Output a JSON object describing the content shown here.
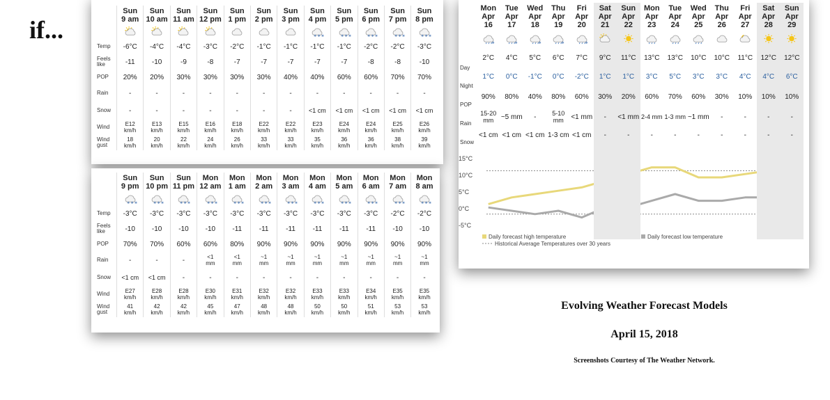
{
  "intro_word": "if...",
  "titles": {
    "main": "Evolving Weather Forecast Models",
    "date": "April 15, 2018",
    "credit": "Screenshots Courtesy of The Weather Network."
  },
  "hourly_labels": {
    "temp": "Temp",
    "feels": "Feels like",
    "pop": "POP",
    "rain": "Rain",
    "snow": "Snow",
    "wind": "Wind",
    "gust": "Wind gust"
  },
  "hourly1": [
    {
      "day": "Sun",
      "time": "9 am",
      "icon": "partly-cloudy-sun-icon",
      "temp": "-6°C",
      "feels": "-11",
      "pop": "20%",
      "rain": "-",
      "snow": "-",
      "wind": "E12 km/h",
      "gust": "18 km/h"
    },
    {
      "day": "Sun",
      "time": "10 am",
      "icon": "partly-cloudy-sun-icon",
      "temp": "-4°C",
      "feels": "-10",
      "pop": "20%",
      "rain": "-",
      "snow": "-",
      "wind": "E13 km/h",
      "gust": "20 km/h"
    },
    {
      "day": "Sun",
      "time": "11 am",
      "icon": "partly-cloudy-sun-icon",
      "temp": "-4°C",
      "feels": "-9",
      "pop": "30%",
      "rain": "-",
      "snow": "-",
      "wind": "E15 km/h",
      "gust": "22 km/h"
    },
    {
      "day": "Sun",
      "time": "12 pm",
      "icon": "partly-cloudy-sun-icon",
      "temp": "-3°C",
      "feels": "-8",
      "pop": "30%",
      "rain": "-",
      "snow": "-",
      "wind": "E16 km/h",
      "gust": "24 km/h"
    },
    {
      "day": "Sun",
      "time": "1 pm",
      "icon": "cloud-icon",
      "temp": "-2°C",
      "feels": "-7",
      "pop": "30%",
      "rain": "-",
      "snow": "-",
      "wind": "E18 km/h",
      "gust": "26 km/h"
    },
    {
      "day": "Sun",
      "time": "2 pm",
      "icon": "cloud-icon",
      "temp": "-1°C",
      "feels": "-7",
      "pop": "30%",
      "rain": "-",
      "snow": "-",
      "wind": "E22 km/h",
      "gust": "33 km/h"
    },
    {
      "day": "Sun",
      "time": "3 pm",
      "icon": "cloud-icon",
      "temp": "-1°C",
      "feels": "-7",
      "pop": "40%",
      "rain": "-",
      "snow": "-",
      "wind": "E22 km/h",
      "gust": "33 km/h"
    },
    {
      "day": "Sun",
      "time": "4 pm",
      "icon": "snow-icon",
      "temp": "-1°C",
      "feels": "-7",
      "pop": "40%",
      "rain": "-",
      "snow": "<1 cm",
      "wind": "E23 km/h",
      "gust": "35 km/h"
    },
    {
      "day": "Sun",
      "time": "5 pm",
      "icon": "snow-icon",
      "temp": "-1°C",
      "feels": "-7",
      "pop": "60%",
      "rain": "-",
      "snow": "<1 cm",
      "wind": "E24 km/h",
      "gust": "36 km/h"
    },
    {
      "day": "Sun",
      "time": "6 pm",
      "icon": "snow-icon",
      "temp": "-2°C",
      "feels": "-8",
      "pop": "60%",
      "rain": "-",
      "snow": "<1 cm",
      "wind": "E24 km/h",
      "gust": "36 km/h"
    },
    {
      "day": "Sun",
      "time": "7 pm",
      "icon": "snow-icon",
      "temp": "-2°C",
      "feels": "-8",
      "pop": "70%",
      "rain": "-",
      "snow": "<1 cm",
      "wind": "E25 km/h",
      "gust": "38 km/h"
    },
    {
      "day": "Sun",
      "time": "8 pm",
      "icon": "snow-icon",
      "temp": "-3°C",
      "feels": "-10",
      "pop": "70%",
      "rain": "-",
      "snow": "<1 cm",
      "wind": "E26 km/h",
      "gust": "39 km/h"
    }
  ],
  "hourly2": [
    {
      "day": "Sun",
      "time": "9 pm",
      "icon": "snow-icon",
      "temp": "-3°C",
      "feels": "-10",
      "pop": "70%",
      "rain": "-",
      "snow": "<1 cm",
      "wind": "E27 km/h",
      "gust": "41 km/h"
    },
    {
      "day": "Sun",
      "time": "10 pm",
      "icon": "snow-icon",
      "temp": "-3°C",
      "feels": "-10",
      "pop": "70%",
      "rain": "-",
      "snow": "<1 cm",
      "wind": "E28 km/h",
      "gust": "42 km/h"
    },
    {
      "day": "Sun",
      "time": "11 pm",
      "icon": "snow-icon",
      "temp": "-3°C",
      "feels": "-10",
      "pop": "60%",
      "rain": "-",
      "snow": "-",
      "wind": "E28 km/h",
      "gust": "42 km/h"
    },
    {
      "day": "Mon",
      "time": "12 am",
      "icon": "snow-icon",
      "temp": "-3°C",
      "feels": "-10",
      "pop": "60%",
      "rain": "<1 mm",
      "snow": "-",
      "wind": "E30 km/h",
      "gust": "45 km/h"
    },
    {
      "day": "Mon",
      "time": "1 am",
      "icon": "snow-icon",
      "temp": "-3°C",
      "feels": "-11",
      "pop": "80%",
      "rain": "<1 mm",
      "snow": "-",
      "wind": "E31 km/h",
      "gust": "47 km/h"
    },
    {
      "day": "Mon",
      "time": "2 am",
      "icon": "snow-icon",
      "temp": "-3°C",
      "feels": "-11",
      "pop": "90%",
      "rain": "~1 mm",
      "snow": "-",
      "wind": "E32 km/h",
      "gust": "48 km/h"
    },
    {
      "day": "Mon",
      "time": "3 am",
      "icon": "snow-icon",
      "temp": "-3°C",
      "feels": "-11",
      "pop": "90%",
      "rain": "~1 mm",
      "snow": "-",
      "wind": "E32 km/h",
      "gust": "48 km/h"
    },
    {
      "day": "Mon",
      "time": "4 am",
      "icon": "snow-icon",
      "temp": "-3°C",
      "feels": "-11",
      "pop": "90%",
      "rain": "~1 mm",
      "snow": "-",
      "wind": "E33 km/h",
      "gust": "50 km/h"
    },
    {
      "day": "Mon",
      "time": "5 am",
      "icon": "snow-icon",
      "temp": "-3°C",
      "feels": "-11",
      "pop": "90%",
      "rain": "~1 mm",
      "snow": "-",
      "wind": "E33 km/h",
      "gust": "50 km/h"
    },
    {
      "day": "Mon",
      "time": "6 am",
      "icon": "snow-icon",
      "temp": "-3°C",
      "feels": "-11",
      "pop": "90%",
      "rain": "~1 mm",
      "snow": "-",
      "wind": "E34 km/h",
      "gust": "51 km/h"
    },
    {
      "day": "Mon",
      "time": "7 am",
      "icon": "snow-icon",
      "temp": "-2°C",
      "feels": "-10",
      "pop": "90%",
      "rain": "~1 mm",
      "snow": "-",
      "wind": "E35 km/h",
      "gust": "53 km/h"
    },
    {
      "day": "Mon",
      "time": "8 am",
      "icon": "snow-icon",
      "temp": "-2°C",
      "feels": "-10",
      "pop": "90%",
      "rain": "~1 mm",
      "snow": "-",
      "wind": "E35 km/h",
      "gust": "53 km/h"
    }
  ],
  "daily_labels": {
    "day": "Day",
    "night": "Night",
    "pop": "POP",
    "rain": "Rain",
    "snow": "Snow"
  },
  "daily": [
    {
      "dow": "Mon",
      "date": "Apr 16",
      "icon": "rain-snow-icon",
      "day": "2°C",
      "night": "1°C",
      "pop": "90%",
      "rain": "15-20 mm",
      "snow": "<1 cm",
      "weekend": false
    },
    {
      "dow": "Tue",
      "date": "Apr 17",
      "icon": "rain-snow-icon",
      "day": "4°C",
      "night": "0°C",
      "pop": "80%",
      "rain": "~5 mm",
      "snow": "<1 cm",
      "weekend": false
    },
    {
      "dow": "Wed",
      "date": "Apr 18",
      "icon": "rain-snow-icon",
      "day": "5°C",
      "night": "-1°C",
      "pop": "40%",
      "rain": "-",
      "snow": "<1 cm",
      "weekend": false
    },
    {
      "dow": "Thu",
      "date": "Apr 19",
      "icon": "rain-snow-icon",
      "day": "6°C",
      "night": "0°C",
      "pop": "80%",
      "rain": "5-10 mm",
      "snow": "1-3 cm",
      "weekend": false
    },
    {
      "dow": "Fri",
      "date": "Apr 20",
      "icon": "rain-snow-icon",
      "day": "7°C",
      "night": "-2°C",
      "pop": "60%",
      "rain": "<1 mm",
      "snow": "<1 cm",
      "weekend": false
    },
    {
      "dow": "Sat",
      "date": "Apr 21",
      "icon": "partly-cloudy-sun-icon",
      "day": "9°C",
      "night": "1°C",
      "pop": "30%",
      "rain": "-",
      "snow": "-",
      "weekend": true
    },
    {
      "dow": "Sun",
      "date": "Apr 22",
      "icon": "sunny-icon",
      "day": "11°C",
      "night": "1°C",
      "pop": "20%",
      "rain": "<1 mm",
      "snow": "-",
      "weekend": true
    },
    {
      "dow": "Mon",
      "date": "Apr 23",
      "icon": "rain-icon",
      "day": "13°C",
      "night": "3°C",
      "pop": "60%",
      "rain": "2-4 mm",
      "snow": "-",
      "weekend": false
    },
    {
      "dow": "Tue",
      "date": "Apr 24",
      "icon": "rain-icon",
      "day": "13°C",
      "night": "5°C",
      "pop": "70%",
      "rain": "1-3 mm",
      "snow": "-",
      "weekend": false
    },
    {
      "dow": "Wed",
      "date": "Apr 25",
      "icon": "rain-icon",
      "day": "10°C",
      "night": "3°C",
      "pop": "60%",
      "rain": "~1 mm",
      "snow": "-",
      "weekend": false
    },
    {
      "dow": "Thu",
      "date": "Apr 26",
      "icon": "cloud-icon",
      "day": "10°C",
      "night": "3°C",
      "pop": "30%",
      "rain": "-",
      "snow": "-",
      "weekend": false
    },
    {
      "dow": "Fri",
      "date": "Apr 27",
      "icon": "partly-cloudy-moon-icon",
      "day": "11°C",
      "night": "4°C",
      "pop": "10%",
      "rain": "-",
      "snow": "-",
      "weekend": false
    },
    {
      "dow": "Sat",
      "date": "Apr 28",
      "icon": "sunny-icon",
      "day": "12°C",
      "night": "4°C",
      "pop": "10%",
      "rain": "-",
      "snow": "-",
      "weekend": true
    },
    {
      "dow": "Sun",
      "date": "Apr 29",
      "icon": "sunny-icon",
      "day": "12°C",
      "night": "6°C",
      "pop": "10%",
      "rain": "-",
      "snow": "-",
      "weekend": true
    }
  ],
  "chart_data": {
    "type": "line",
    "categories": [
      "Apr 16",
      "Apr 17",
      "Apr 18",
      "Apr 19",
      "Apr 20",
      "Apr 21",
      "Apr 22",
      "Apr 23",
      "Apr 24",
      "Apr 25",
      "Apr 26",
      "Apr 27",
      "Apr 28",
      "Apr 29"
    ],
    "series": [
      {
        "name": "Daily forecast high temperature",
        "values": [
          2,
          4,
          5,
          6,
          7,
          9,
          11,
          13,
          13,
          10,
          10,
          11,
          12,
          12
        ],
        "color": "#e8d87a"
      },
      {
        "name": "Daily forecast low temperature",
        "values": [
          1,
          0,
          -1,
          0,
          -2,
          1,
          1,
          3,
          5,
          3,
          3,
          4,
          4,
          6
        ],
        "color": "#aaaaaa"
      },
      {
        "name": "Historical Average Temperatures over 30 years",
        "type": "dotted",
        "high": [
          12,
          12,
          12,
          12,
          12,
          12,
          12,
          12,
          12,
          12,
          12,
          12,
          12,
          12
        ],
        "low": [
          -1,
          -1,
          -1,
          -1,
          -1,
          -1,
          -1,
          -1,
          -1,
          -1,
          -1,
          -1,
          -1,
          -1
        ],
        "color": "#888888"
      }
    ],
    "yticks": [
      "15°C",
      "10°C",
      "5°C",
      "0°C",
      "-5°C"
    ],
    "ytick_values": [
      15,
      10,
      5,
      0,
      -5
    ],
    "ylim": [
      -5,
      15
    ],
    "legend": {
      "high": "Daily forecast high temperature",
      "low": "Daily forecast low temperature",
      "hist": "Historical Average Temperatures over 30 years"
    }
  }
}
